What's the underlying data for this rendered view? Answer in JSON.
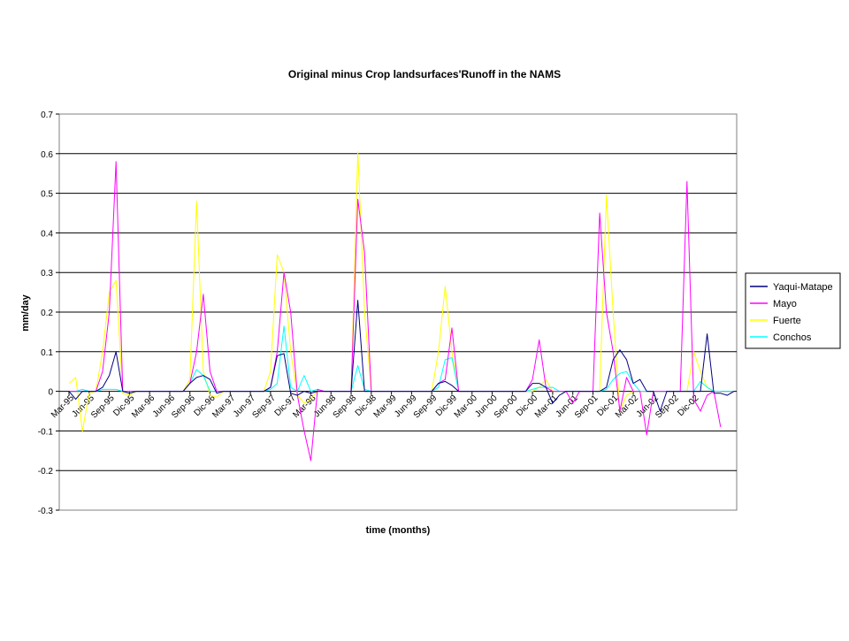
{
  "chart_data": {
    "type": "line",
    "title": "Original minus Crop landsurfaces'Runoff in the NAMS",
    "xlabel": "time (months)",
    "ylabel": "mm/day",
    "ylim": [
      -0.3,
      0.7
    ],
    "yticks": [
      "0.7",
      "0.6",
      "0.5",
      "0.4",
      "0.3",
      "0.2",
      "0.1",
      "0",
      "-0.1",
      "-0.2",
      "-0.3"
    ],
    "grid": true,
    "legend_position": "right",
    "x_tick_labels": [
      "Mar-95",
      "Jun-95",
      "Sep-95",
      "Dic-95",
      "Mar-96",
      "Jun-96",
      "Sep-96",
      "Dic-96",
      "Mar-97",
      "Jun-97",
      "Sep-97",
      "Dic-97",
      "Mar-98",
      "Jun-98",
      "Sep-98",
      "Dic-98",
      "Mar-99",
      "Jun-99",
      "Sep-99",
      "Dic-99",
      "Mar-00",
      "Jun-00",
      "Sep-00",
      "Dic-00",
      "Mar-01",
      "Jun-01",
      "Sep-01",
      "Dic-01",
      "Mar-02",
      "Jun-02",
      "Sep-02",
      "Dic-02"
    ],
    "series": [
      {
        "name": "Yaqui-Matape",
        "color": "#000080",
        "values": [
          0,
          -0.02,
          0,
          0,
          0,
          0.01,
          0.04,
          0.1,
          0,
          -0.005,
          0,
          0,
          0,
          0,
          0,
          0,
          0,
          0,
          0.02,
          0.035,
          0.04,
          0.03,
          -0.005,
          0,
          0,
          0,
          0,
          0,
          0,
          0,
          0.01,
          0.09,
          0.095,
          -0.005,
          -0.01,
          0,
          -0.005,
          0,
          0,
          0,
          0,
          0,
          0,
          0.23,
          0,
          0,
          0,
          0,
          0,
          0,
          0,
          0,
          0,
          0,
          0,
          0.02,
          0.025,
          0.015,
          0,
          0,
          0,
          0,
          0,
          0,
          0,
          0,
          0,
          0,
          0,
          0.02,
          0.02,
          0.01,
          -0.03,
          -0.01,
          0,
          0,
          0,
          0,
          0,
          0,
          0.01,
          0.08,
          0.105,
          0.08,
          0.02,
          0.03,
          0,
          0,
          -0.05,
          0,
          0,
          0,
          0,
          0,
          0,
          0.145,
          -0.005,
          -0.005,
          -0.01,
          0
        ]
      },
      {
        "name": "Mayo",
        "color": "#FF00FF",
        "values": [
          0,
          0,
          0,
          0,
          0,
          0.05,
          0.2,
          0.58,
          0,
          0,
          0,
          0,
          0,
          0,
          0,
          0,
          0,
          0,
          0.02,
          0.1,
          0.245,
          0.05,
          0,
          0,
          0,
          0,
          0,
          0,
          0,
          0,
          0.01,
          0.1,
          0.3,
          0.2,
          -0.01,
          -0.1,
          -0.175,
          0.005,
          0,
          0,
          0,
          0,
          0,
          0.485,
          0.35,
          0,
          0,
          0,
          0,
          0,
          0,
          0,
          0,
          0,
          0,
          0.02,
          0.03,
          0.16,
          0,
          0,
          0,
          0,
          0,
          0,
          0,
          0,
          0,
          0,
          0,
          0.03,
          0.13,
          0.01,
          0,
          0,
          0,
          -0.03,
          0,
          0,
          0,
          0.45,
          0.2,
          0.1,
          -0.05,
          0.035,
          0,
          0,
          -0.11,
          0,
          0,
          0,
          0,
          0,
          0.53,
          -0.02,
          -0.05,
          -0.01,
          0,
          -0.09
        ]
      },
      {
        "name": "Fuerte",
        "color": "#FFFF00",
        "values": [
          0.02,
          0.035,
          -0.1,
          -0.005,
          0,
          0.1,
          0.25,
          0.28,
          -0.005,
          -0.01,
          0,
          0,
          0,
          0,
          0,
          0,
          0,
          0,
          0.03,
          0.48,
          0.05,
          -0.01,
          -0.015,
          0,
          0,
          0,
          0,
          0,
          0,
          0,
          0.05,
          0.345,
          0.3,
          0.1,
          -0.01,
          -0.03,
          -0.02,
          0,
          0,
          0,
          0,
          0,
          0,
          0.605,
          0.2,
          0,
          0,
          0,
          0,
          0,
          0,
          0,
          0,
          0,
          0,
          0.1,
          0.265,
          0.1,
          0,
          0,
          0,
          0,
          0,
          0,
          0,
          0,
          0,
          0,
          0,
          0,
          0.01,
          0.03,
          0,
          0,
          0,
          0,
          0,
          0,
          0,
          0,
          0.495,
          0.2,
          -0.05,
          -0.01,
          0,
          0,
          0,
          0,
          0,
          0,
          0,
          0,
          0,
          0.1,
          0.05,
          0.01,
          0,
          0
        ]
      },
      {
        "name": "Conchos",
        "color": "#00FFFF",
        "values": [
          0,
          0,
          0.005,
          0,
          0,
          0.005,
          0.005,
          0.005,
          0,
          0,
          0,
          0,
          0,
          0,
          0,
          0,
          0,
          0,
          0.02,
          0.055,
          0.04,
          0,
          0,
          0,
          0,
          0,
          0,
          0,
          0,
          0,
          0.005,
          0.02,
          0.165,
          0.01,
          0,
          0.04,
          0,
          0.005,
          0,
          0,
          0,
          0,
          0,
          0.065,
          0.005,
          0,
          0,
          0,
          0,
          0,
          0,
          0,
          0,
          0,
          0,
          0.01,
          0.08,
          0.085,
          0,
          0,
          0,
          0,
          0,
          0,
          0,
          0,
          0,
          0,
          0,
          0.005,
          0.01,
          0.01,
          0.01,
          0,
          0,
          0,
          0,
          0,
          0,
          0,
          0.005,
          0.03,
          0.045,
          0.05,
          0.02,
          0,
          0,
          0,
          0,
          0,
          0,
          0,
          0,
          0,
          0.025,
          0.01,
          0,
          0,
          0,
          0
        ]
      }
    ]
  }
}
